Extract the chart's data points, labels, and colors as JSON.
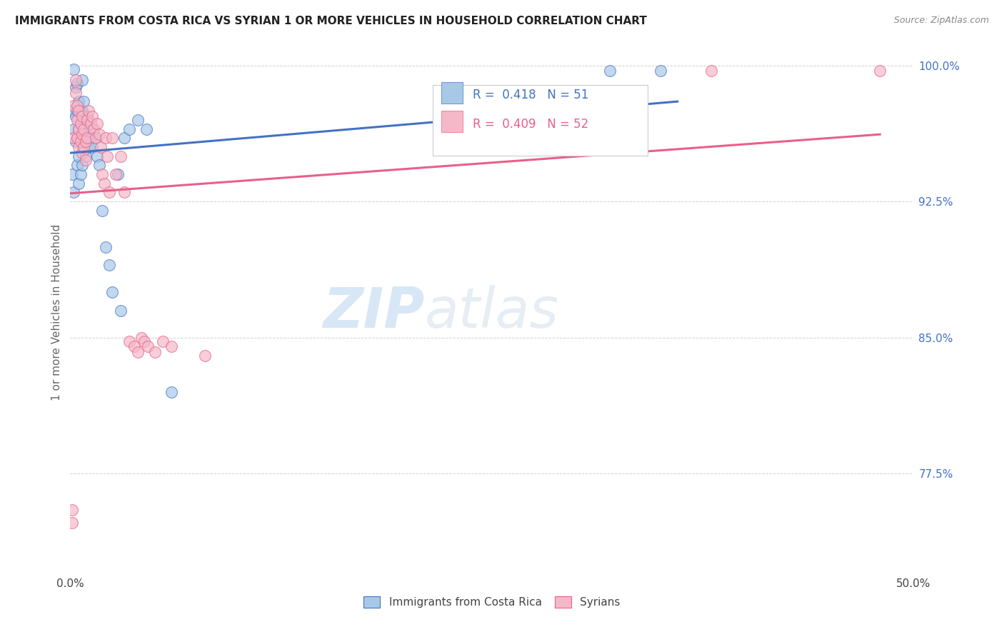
{
  "title": "IMMIGRANTS FROM COSTA RICA VS SYRIAN 1 OR MORE VEHICLES IN HOUSEHOLD CORRELATION CHART",
  "source": "Source: ZipAtlas.com",
  "ylabel": "1 or more Vehicles in Household",
  "xlim": [
    0.0,
    0.5
  ],
  "ylim": [
    0.72,
    1.008
  ],
  "yticks": [
    0.775,
    0.85,
    0.925,
    1.0
  ],
  "yticklabels": [
    "77.5%",
    "85.0%",
    "92.5%",
    "100.0%"
  ],
  "color_blue": "#a8c8e8",
  "color_pink": "#f4b8c8",
  "line_blue": "#4472c4",
  "line_pink": "#e8608a",
  "background": "#ffffff",
  "grid_color": "#d0d0d0",
  "r_blue": "R =  0.418",
  "n_blue": "N = 51",
  "r_pink": "R =  0.409",
  "n_pink": "N = 52",
  "cr_x": [
    0.001,
    0.001,
    0.002,
    0.002,
    0.002,
    0.003,
    0.003,
    0.003,
    0.004,
    0.004,
    0.004,
    0.004,
    0.005,
    0.005,
    0.005,
    0.005,
    0.006,
    0.006,
    0.006,
    0.007,
    0.007,
    0.007,
    0.007,
    0.008,
    0.008,
    0.008,
    0.009,
    0.009,
    0.01,
    0.01,
    0.011,
    0.011,
    0.012,
    0.013,
    0.014,
    0.015,
    0.016,
    0.017,
    0.019,
    0.021,
    0.023,
    0.025,
    0.028,
    0.03,
    0.032,
    0.035,
    0.04,
    0.045,
    0.06,
    0.32,
    0.35
  ],
  "cr_y": [
    0.94,
    0.975,
    0.93,
    0.965,
    0.998,
    0.958,
    0.972,
    0.988,
    0.945,
    0.96,
    0.975,
    0.99,
    0.935,
    0.95,
    0.965,
    0.98,
    0.94,
    0.96,
    0.975,
    0.945,
    0.96,
    0.975,
    0.992,
    0.955,
    0.968,
    0.98,
    0.95,
    0.965,
    0.958,
    0.972,
    0.955,
    0.968,
    0.96,
    0.955,
    0.965,
    0.96,
    0.95,
    0.945,
    0.92,
    0.9,
    0.89,
    0.875,
    0.94,
    0.865,
    0.96,
    0.965,
    0.97,
    0.965,
    0.82,
    0.997,
    0.997
  ],
  "sy_x": [
    0.001,
    0.001,
    0.002,
    0.002,
    0.003,
    0.003,
    0.004,
    0.004,
    0.004,
    0.005,
    0.005,
    0.005,
    0.006,
    0.006,
    0.007,
    0.007,
    0.007,
    0.008,
    0.008,
    0.009,
    0.009,
    0.01,
    0.01,
    0.011,
    0.012,
    0.013,
    0.014,
    0.015,
    0.016,
    0.017,
    0.018,
    0.019,
    0.02,
    0.021,
    0.022,
    0.023,
    0.025,
    0.027,
    0.03,
    0.032,
    0.035,
    0.038,
    0.04,
    0.042,
    0.044,
    0.046,
    0.05,
    0.055,
    0.06,
    0.08,
    0.38,
    0.48
  ],
  "sy_y": [
    0.755,
    0.748,
    0.96,
    0.978,
    0.992,
    0.985,
    0.978,
    0.97,
    0.96,
    0.975,
    0.965,
    0.955,
    0.968,
    0.958,
    0.972,
    0.962,
    0.952,
    0.965,
    0.955,
    0.958,
    0.948,
    0.97,
    0.96,
    0.975,
    0.968,
    0.972,
    0.965,
    0.96,
    0.968,
    0.962,
    0.955,
    0.94,
    0.935,
    0.96,
    0.95,
    0.93,
    0.96,
    0.94,
    0.95,
    0.93,
    0.848,
    0.845,
    0.842,
    0.85,
    0.848,
    0.845,
    0.842,
    0.848,
    0.845,
    0.84,
    0.997,
    0.997
  ]
}
